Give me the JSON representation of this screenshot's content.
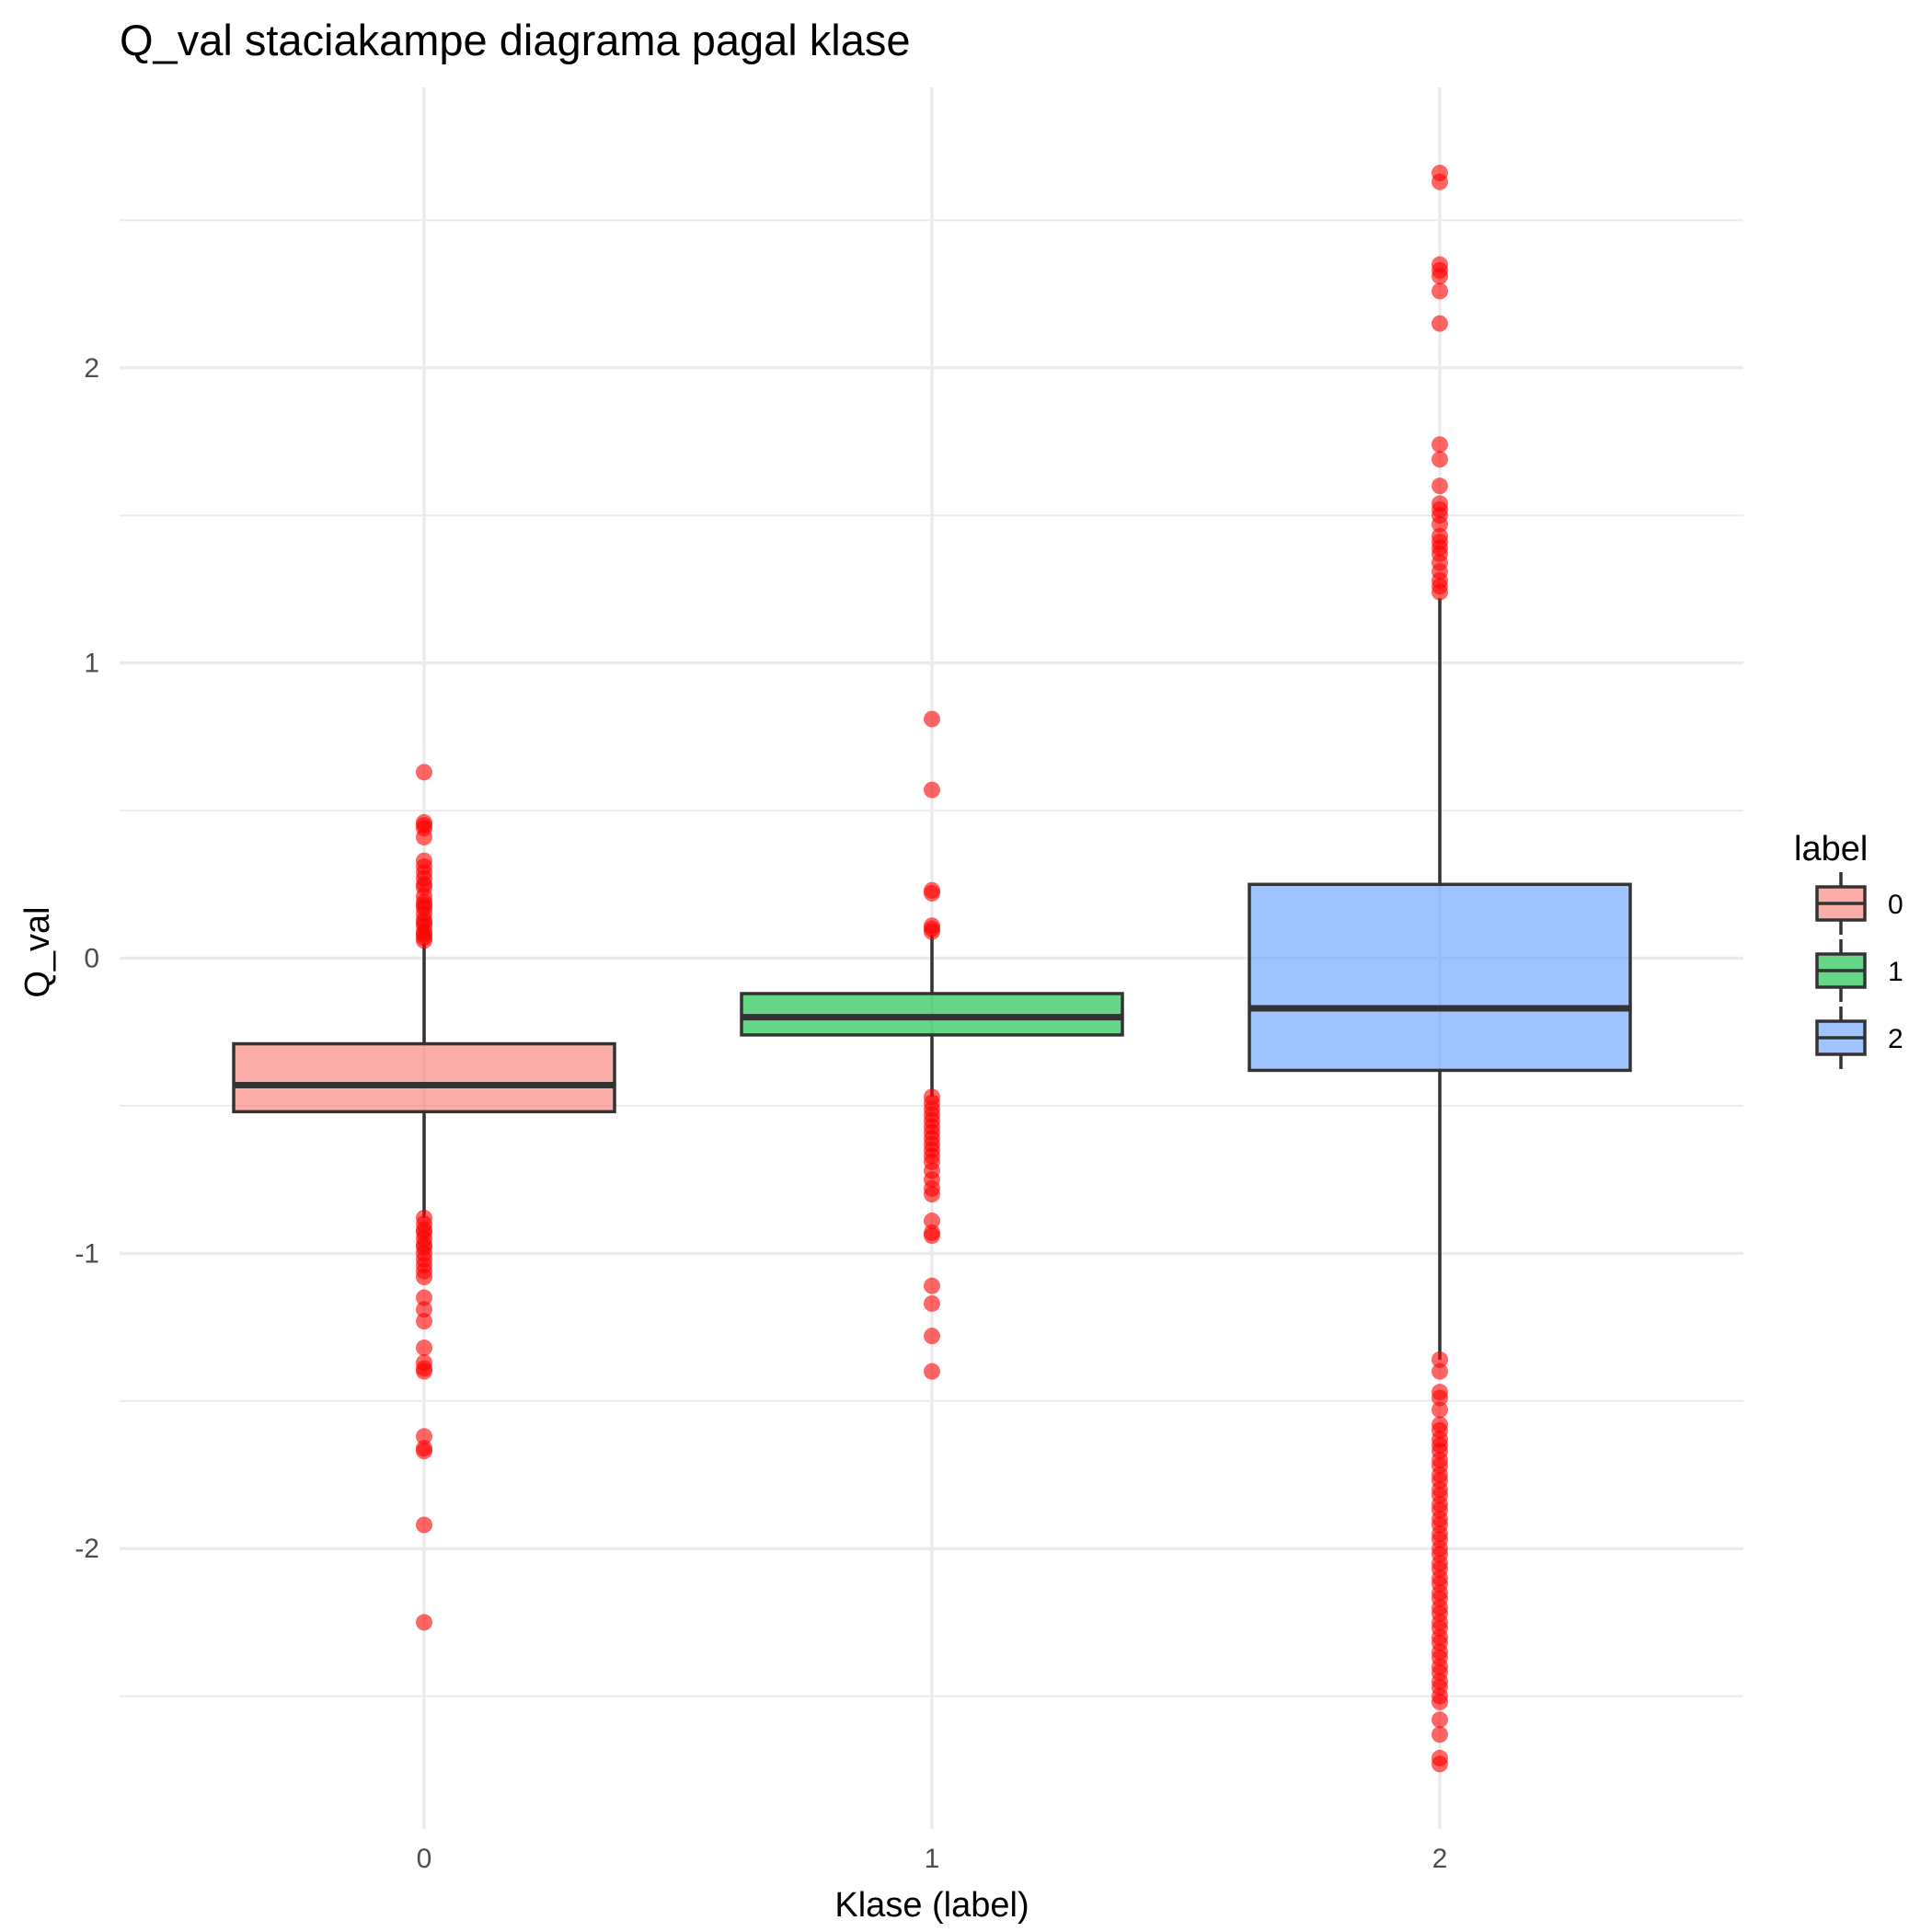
{
  "chart_data": {
    "type": "boxplot",
    "title": "Q_val staciakampe diagrama pagal klase",
    "xlabel": "Klase (label)",
    "ylabel": "Q_val",
    "categories": [
      "0",
      "1",
      "2"
    ],
    "ylim": [
      -2.95,
      2.95
    ],
    "y_ticks": [
      -2,
      -1,
      0,
      1,
      2
    ],
    "y_tick_labels": [
      "-2",
      "-1",
      "0",
      "1",
      "2"
    ],
    "grid": true,
    "legend": {
      "title": "label",
      "position": "right",
      "items": [
        {
          "label": "0",
          "color": "#F8766D"
        },
        {
          "label": "1",
          "color": "#00BA38"
        },
        {
          "label": "2",
          "color": "#619CFF"
        }
      ]
    },
    "outlier_color": "#FF0000",
    "series": [
      {
        "category": "0",
        "color": "#F8766D",
        "box": {
          "whisker_low": -0.88,
          "q1": -0.52,
          "median": -0.43,
          "q3": -0.29,
          "whisker_high": 0.05
        },
        "outliers": [
          0.63,
          0.46,
          0.45,
          0.44,
          0.41,
          0.33,
          0.31,
          0.29,
          0.27,
          0.25,
          0.24,
          0.21,
          0.19,
          0.18,
          0.17,
          0.15,
          0.13,
          0.12,
          0.11,
          0.09,
          0.08,
          0.07,
          0.06,
          -0.88,
          -0.9,
          -0.92,
          -0.93,
          -0.95,
          -0.97,
          -0.98,
          -1.0,
          -1.02,
          -1.04,
          -1.06,
          -1.08,
          -1.15,
          -1.19,
          -1.23,
          -1.32,
          -1.37,
          -1.39,
          -1.4,
          -1.62,
          -1.66,
          -1.67,
          -1.92,
          -2.25
        ]
      },
      {
        "category": "1",
        "color": "#00BA38",
        "box": {
          "whisker_low": -0.47,
          "q1": -0.26,
          "median": -0.2,
          "q3": -0.12,
          "whisker_high": 0.08
        },
        "outliers": [
          0.81,
          0.57,
          0.23,
          0.22,
          0.11,
          0.1,
          0.09,
          -0.47,
          -0.49,
          -0.51,
          -0.53,
          -0.55,
          -0.57,
          -0.59,
          -0.61,
          -0.63,
          -0.65,
          -0.67,
          -0.69,
          -0.72,
          -0.75,
          -0.78,
          -0.8,
          -0.89,
          -0.93,
          -0.94,
          -1.11,
          -1.17,
          -1.28,
          -1.4
        ]
      },
      {
        "category": "2",
        "color": "#619CFF",
        "box": {
          "whisker_low": -1.36,
          "q1": -0.38,
          "median": -0.17,
          "q3": 0.25,
          "whisker_high": 1.22
        },
        "outliers": [
          2.66,
          2.63,
          2.35,
          2.33,
          2.31,
          2.26,
          2.15,
          1.74,
          1.69,
          1.6,
          1.54,
          1.52,
          1.5,
          1.47,
          1.43,
          1.41,
          1.39,
          1.37,
          1.34,
          1.31,
          1.28,
          1.26,
          1.24,
          -1.36,
          -1.4,
          -1.47,
          -1.49,
          -1.53,
          -1.58,
          -1.6,
          -1.63,
          -1.65,
          -1.67,
          -1.7,
          -1.72,
          -1.75,
          -1.77,
          -1.8,
          -1.82,
          -1.85,
          -1.87,
          -1.9,
          -1.92,
          -1.95,
          -1.97,
          -2.0,
          -2.02,
          -2.05,
          -2.07,
          -2.1,
          -2.12,
          -2.15,
          -2.17,
          -2.2,
          -2.22,
          -2.25,
          -2.27,
          -2.3,
          -2.32,
          -2.35,
          -2.37,
          -2.4,
          -2.42,
          -2.45,
          -2.47,
          -2.5,
          -2.52,
          -2.58,
          -2.63,
          -2.71,
          -2.73
        ]
      }
    ]
  }
}
